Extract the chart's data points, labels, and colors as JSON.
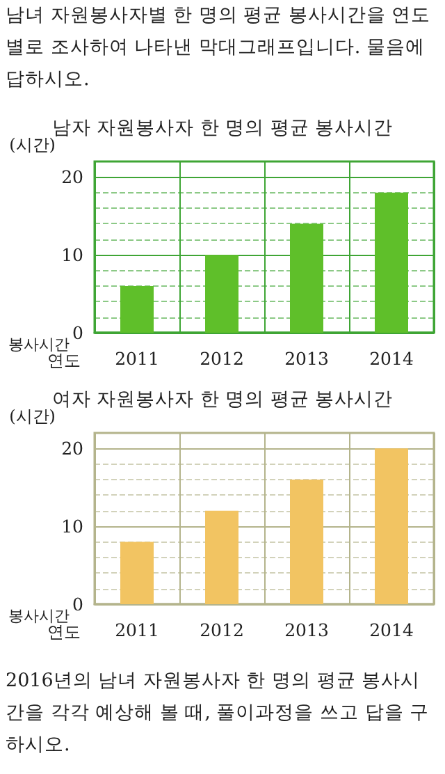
{
  "chart_data": [
    {
      "type": "bar",
      "title": "남자 자원봉사자 한 명의 평균 봉사시간",
      "ylabel": "(시간)",
      "xlabel": "연도",
      "annotations": [
        "봉사시간",
        "남녀 자원봉사자별 한 명의 평균 봉사시간을 연도별로 조사하여 나타낸 막대그래프입니다. 물음에 답하시오."
      ],
      "categories": [
        "2011",
        "2012",
        "2013",
        "2014"
      ],
      "values": [
        6,
        10,
        14,
        18
      ],
      "color": "#5fbf2a",
      "ylim": [
        0,
        22
      ],
      "yticks": [
        0,
        {
          "value": 2,
          "label": null
        },
        {
          "value": 4,
          "label": null
        },
        {
          "value": 6,
          "label": null
        },
        {
          "value": 8,
          "label": null
        },
        10,
        {
          "value": 12,
          "label": null
        },
        {
          "value": 14,
          "label": null
        },
        {
          "value": 16,
          "label": null
        },
        {
          "value": 18,
          "label": null
        },
        20
      ],
      "grid": true
    },
    {
      "type": "bar",
      "title": "여자 자원봉사자 한 명의 평균 봉사시간",
      "ylabel": "(시간)",
      "xlabel": "연도",
      "annotations": [
        "봉사시간",
        "2016년의 남녀 자원봉사자 한 명의 평균 봉사시간을 각각 예상해 볼 때, 풀이과정을 쓰고 답을 구하시오."
      ],
      "categories": [
        "2011",
        "2012",
        "2013",
        "2014"
      ],
      "values": [
        8,
        12,
        16,
        20
      ],
      "color": "#f2c462",
      "ylim": [
        0,
        22
      ],
      "yticks": [
        0,
        {
          "value": 2,
          "label": null
        },
        {
          "value": 4,
          "label": null
        },
        {
          "value": 6,
          "label": null
        },
        {
          "value": 8,
          "label": null
        },
        10,
        {
          "value": 12,
          "label": null
        },
        {
          "value": 14,
          "label": null
        },
        {
          "value": 16,
          "label": null
        },
        {
          "value": 18,
          "label": null
        },
        20
      ],
      "grid": true
    }
  ]
}
